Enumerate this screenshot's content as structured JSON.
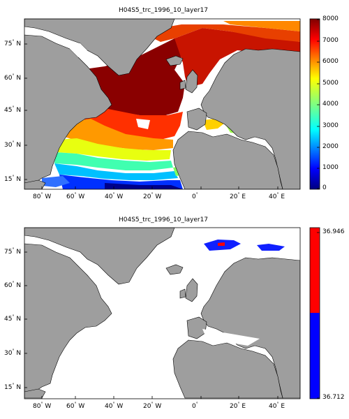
{
  "maps": [
    {
      "title": "H04S5_trc_1996_10_layer17",
      "lat_ticks": [
        {
          "deg": "75",
          "hemi": "N"
        },
        {
          "deg": "60",
          "hemi": "N"
        },
        {
          "deg": "45",
          "hemi": "N"
        },
        {
          "deg": "30",
          "hemi": "N"
        },
        {
          "deg": "15",
          "hemi": "N"
        }
      ],
      "lon_ticks": [
        {
          "deg": "80",
          "hemi": "W"
        },
        {
          "deg": "60",
          "hemi": "W"
        },
        {
          "deg": "40",
          "hemi": "W"
        },
        {
          "deg": "20",
          "hemi": "W"
        },
        {
          "deg": "0",
          "hemi": ""
        },
        {
          "deg": "20",
          "hemi": "E"
        },
        {
          "deg": "40",
          "hemi": "E"
        }
      ],
      "colorbar": {
        "ticks": [
          "8000",
          "7000",
          "6000",
          "5000",
          "4000",
          "3000",
          "2000",
          "1000",
          "0"
        ],
        "colormap": "jet"
      }
    },
    {
      "title": "H04S5_trc_1996_10_layer17",
      "lat_ticks": [
        {
          "deg": "75",
          "hemi": "N"
        },
        {
          "deg": "60",
          "hemi": "N"
        },
        {
          "deg": "45",
          "hemi": "N"
        },
        {
          "deg": "30",
          "hemi": "N"
        },
        {
          "deg": "15",
          "hemi": "N"
        }
      ],
      "lon_ticks": [
        {
          "deg": "80",
          "hemi": "W"
        },
        {
          "deg": "60",
          "hemi": "W"
        },
        {
          "deg": "40",
          "hemi": "W"
        },
        {
          "deg": "20",
          "hemi": "W"
        },
        {
          "deg": "0",
          "hemi": ""
        },
        {
          "deg": "20",
          "hemi": "E"
        },
        {
          "deg": "40",
          "hemi": "E"
        }
      ],
      "colorbar": {
        "ticks": [
          "36.946",
          "36.712"
        ],
        "colors": [
          "#ff0000",
          "#0000ff"
        ]
      }
    }
  ],
  "colors": {
    "land": "#9e9e9e",
    "coast": "#000000",
    "background": "#ffffff"
  }
}
